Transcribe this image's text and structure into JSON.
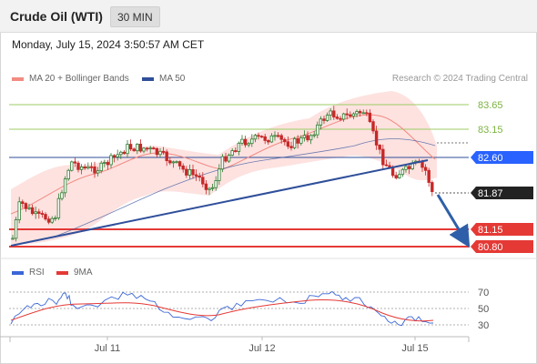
{
  "header": {
    "title": "Crude Oil (WTI)",
    "timeframe": "30 MIN"
  },
  "datetime": "Monday, July 15, 2024 3:50:57 AM CET",
  "legend": {
    "ma20": {
      "label": "MA 20 + Bollinger Bands",
      "color": "#f28b82"
    },
    "ma50": {
      "label": "MA 50",
      "color": "#2f4f9a"
    },
    "copyright": "Research © 2024 Trading Central"
  },
  "price_levels": [
    {
      "label": "83.65",
      "kind": "resistance",
      "color": "#7cb342"
    },
    {
      "label": "83.15",
      "kind": "resistance",
      "color": "#7cb342"
    },
    {
      "label": "82.60",
      "kind": "pivot",
      "color": "#2962ff"
    },
    {
      "label": "81.87",
      "kind": "last",
      "color": "#222222"
    },
    {
      "label": "81.15",
      "kind": "support",
      "color": "#e53935"
    },
    {
      "label": "80.80",
      "kind": "support",
      "color": "#e53935"
    }
  ],
  "rsi": {
    "legend_rsi": "RSI",
    "legend_ma": "9MA",
    "rsi_color": "#3a66d6",
    "ma_color": "#e53935",
    "levels": [
      "70",
      "50",
      "30"
    ]
  },
  "x_axis": {
    "labels": [
      "Jul 11",
      "Jul 12",
      "Jul 15"
    ]
  },
  "colors": {
    "up": "#2e7d32",
    "down": "#c62828",
    "band": "#fde2e0",
    "trend": "#2f4f9a"
  }
}
